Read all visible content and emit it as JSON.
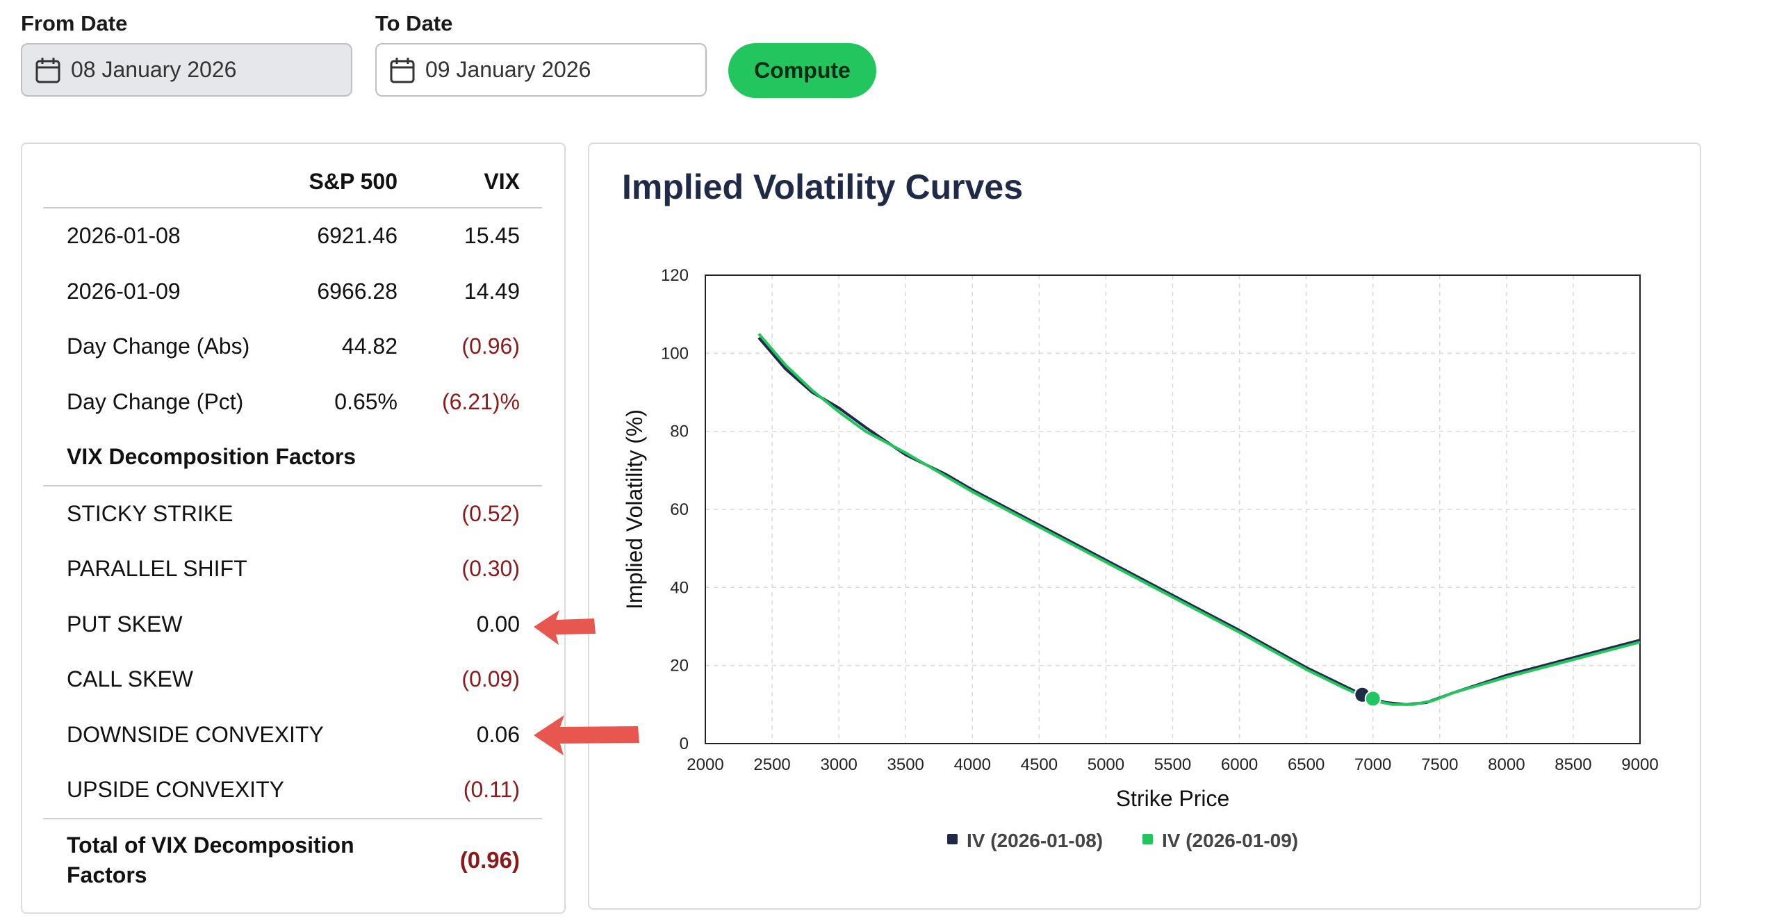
{
  "controls": {
    "from_label": "From Date",
    "from_value": "08 January 2026",
    "to_label": "To Date",
    "to_value": "09 January 2026",
    "compute_label": "Compute"
  },
  "table": {
    "headers": [
      "",
      "S&P 500",
      "VIX"
    ],
    "rows": [
      {
        "label": "2026-01-08",
        "sp": "6921.46",
        "vix": "15.45"
      },
      {
        "label": "2026-01-09",
        "sp": "6966.28",
        "vix": "14.49"
      },
      {
        "label": "Day Change (Abs)",
        "sp": "44.82",
        "vix": "(0.96)"
      },
      {
        "label": "Day Change (Pct)",
        "sp": "0.65%",
        "vix": "(6.21)%"
      }
    ],
    "section_title": "VIX Decomposition Factors",
    "factors": [
      {
        "label": "STICKY STRIKE",
        "value": "(0.52)"
      },
      {
        "label": "PARALLEL SHIFT",
        "value": "(0.30)"
      },
      {
        "label": "PUT SKEW",
        "value": "0.00"
      },
      {
        "label": "CALL SKEW",
        "value": "(0.09)"
      },
      {
        "label": "DOWNSIDE CONVEXITY",
        "value": "0.06"
      },
      {
        "label": "UPSIDE CONVEXITY",
        "value": "(0.11)"
      }
    ],
    "total_label_line1": "Total of VIX Decomposition",
    "total_label_line2": "Factors",
    "total_value": "(0.96)"
  },
  "colors": {
    "accent": "#22c55e",
    "negative": "#8b1a1a",
    "series1": "#1f2a48",
    "series2": "#22c55e",
    "arrow": "#e8574f"
  },
  "chart_data": {
    "type": "line",
    "title": "Implied Volatility Curves",
    "xlabel": "Strike Price",
    "ylabel": "Implied Volatility (%)",
    "xlim": [
      2000,
      9000
    ],
    "ylim": [
      0,
      120
    ],
    "xticks": [
      2000,
      2500,
      3000,
      3500,
      4000,
      4500,
      5000,
      5500,
      6000,
      6500,
      7000,
      7500,
      8000,
      8500,
      9000
    ],
    "yticks": [
      0,
      20,
      40,
      60,
      80,
      100,
      120
    ],
    "grid": true,
    "legend_position": "bottom",
    "series": [
      {
        "name": "IV (2026-01-08)",
        "x": [
          2400,
          2600,
          2800,
          3000,
          3200,
          3500,
          3800,
          4000,
          4500,
          5000,
          5500,
          6000,
          6500,
          6800,
          6950,
          7100,
          7250,
          7400,
          7600,
          8000,
          8500,
          9000
        ],
        "y": [
          104,
          96,
          90,
          86,
          81,
          74,
          69,
          65,
          56,
          47,
          38,
          29,
          19.5,
          14.5,
          12,
          10.5,
          10,
          10.5,
          13,
          17.5,
          22,
          26.5
        ],
        "marker": {
          "x": 6920,
          "y": 12.5
        }
      },
      {
        "name": "IV (2026-01-09)",
        "x": [
          2400,
          2600,
          2800,
          3000,
          3200,
          3500,
          3800,
          4000,
          4500,
          5000,
          5500,
          6000,
          6500,
          6800,
          7000,
          7150,
          7300,
          7450,
          7600,
          8000,
          8500,
          9000
        ],
        "y": [
          105,
          97,
          90.5,
          85,
          80,
          74.5,
          68.5,
          64.5,
          55.5,
          46.5,
          37.5,
          28.5,
          19,
          14,
          11,
          10,
          10,
          11,
          13,
          17,
          21.5,
          26
        ],
        "marker": {
          "x": 7000,
          "y": 11.5
        }
      }
    ]
  },
  "annotations": {
    "arrows": [
      "arrow pointing at PUT SKEW value",
      "arrow pointing at DOWNSIDE CONVEXITY value"
    ]
  }
}
